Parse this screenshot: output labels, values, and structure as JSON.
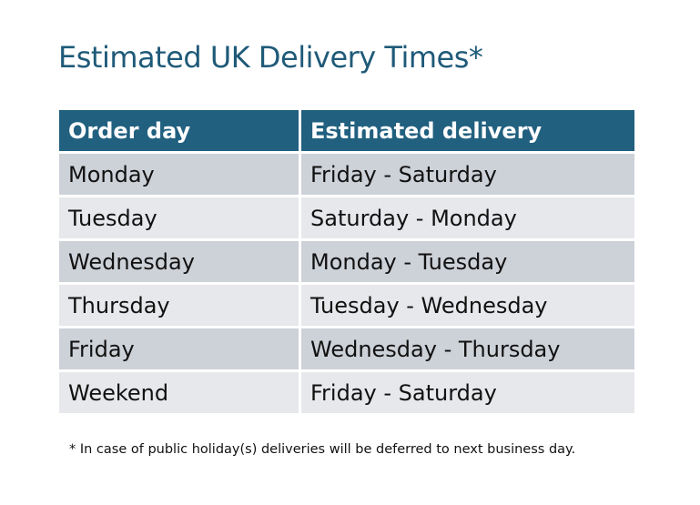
{
  "title": "Estimated UK Delivery Times*",
  "table": {
    "headers": [
      "Order day",
      "Estimated delivery"
    ],
    "rows": [
      [
        "Monday",
        "Friday - Saturday"
      ],
      [
        "Tuesday",
        "Saturday - Monday"
      ],
      [
        "Wednesday",
        "Monday - Tuesday"
      ],
      [
        "Thursday",
        "Tuesday - Wednesday"
      ],
      [
        "Friday",
        "Wednesday - Thursday"
      ],
      [
        "Weekend",
        "Friday - Saturday"
      ]
    ]
  },
  "footnote": "* In case of public holiday(s) deliveries will be deferred to next business day.",
  "colors": {
    "header": "#21607f",
    "title": "#1f5a78",
    "row_dark": "#cdd1d8",
    "row_light": "#e6e8eb"
  }
}
